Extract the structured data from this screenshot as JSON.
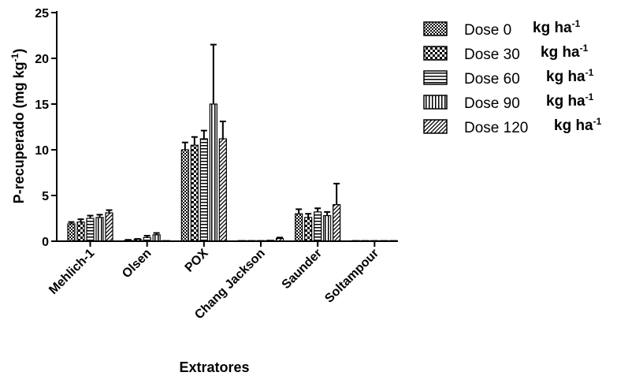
{
  "chart_data": {
    "type": "bar",
    "xlabel": "Extratores",
    "ylabel": "P-recuperado (mg kg",
    "ylabel_sup": "-1",
    "ylabel_close": ")",
    "ylim": [
      0,
      25
    ],
    "yticks": [
      "0",
      "5",
      "10",
      "15",
      "20",
      "25"
    ],
    "grid": false,
    "legend_position": "top-right",
    "legend_unit": "kg ha",
    "legend_unit_sup": "-1",
    "categories": [
      "Mehlich-1",
      "Olsen",
      "POX",
      "Chang Jackson",
      "Saunder",
      "Soltampour"
    ],
    "series": [
      {
        "name": "Dose 0",
        "pattern": "checker",
        "values": [
          1.9,
          0.1,
          10.0,
          0.0,
          3.0,
          0.05
        ],
        "errors": [
          0.2,
          0.05,
          0.8,
          0.0,
          0.5,
          0.0
        ]
      },
      {
        "name": "Dose 30",
        "pattern": "bigcheck",
        "values": [
          2.1,
          0.2,
          10.5,
          0.0,
          2.6,
          0.05
        ],
        "errors": [
          0.3,
          0.05,
          0.9,
          0.0,
          0.4,
          0.0
        ]
      },
      {
        "name": "Dose 60",
        "pattern": "hlines",
        "values": [
          2.5,
          0.4,
          11.2,
          0.0,
          3.2,
          0.05
        ],
        "errors": [
          0.3,
          0.2,
          0.9,
          0.0,
          0.4,
          0.0
        ]
      },
      {
        "name": "Dose 90",
        "pattern": "vlines",
        "values": [
          2.6,
          0.7,
          15.0,
          0.1,
          2.8,
          0.05
        ],
        "errors": [
          0.3,
          0.2,
          6.5,
          0.0,
          0.4,
          0.0
        ]
      },
      {
        "name": "Dose 120",
        "pattern": "diag",
        "values": [
          3.1,
          0.0,
          11.2,
          0.3,
          4.0,
          0.05
        ],
        "errors": [
          0.3,
          0.0,
          1.9,
          0.1,
          2.3,
          0.0
        ]
      }
    ]
  }
}
